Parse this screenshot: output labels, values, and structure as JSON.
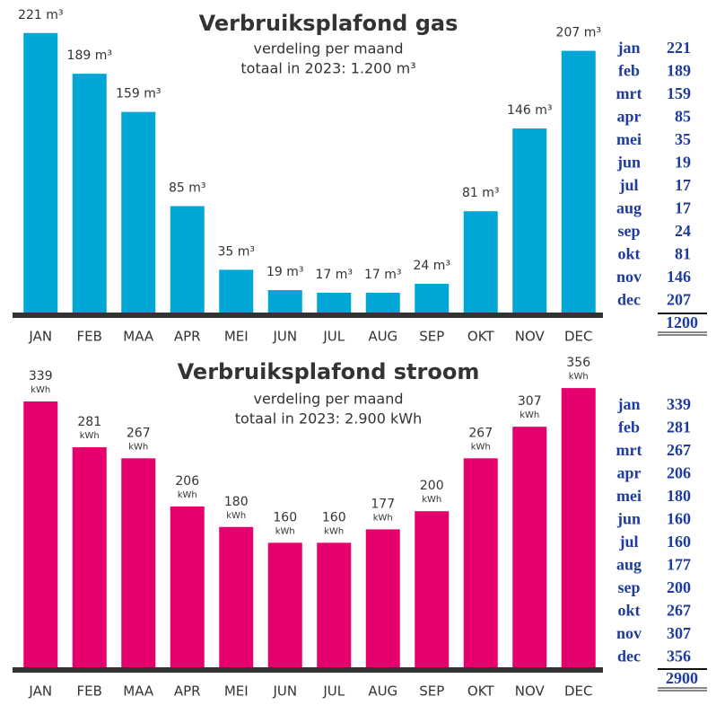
{
  "chart_data": [
    {
      "type": "bar",
      "title": "Verbruiksplafond gas",
      "subtitle": [
        "verdeling per maand",
        "totaal in 2023: 1.200 m³"
      ],
      "categories": [
        "JAN",
        "FEB",
        "MAA",
        "APR",
        "MEI",
        "JUN",
        "JUL",
        "AUG",
        "SEP",
        "OKT",
        "NOV",
        "DEC"
      ],
      "values": [
        221,
        189,
        159,
        85,
        35,
        19,
        17,
        17,
        24,
        81,
        146,
        207
      ],
      "value_labels": [
        "221 m³",
        "189 m³",
        "159 m³",
        "85 m³",
        "35 m³",
        "19 m³",
        "17 m³",
        "17 m³",
        "24 m³",
        "81 m³",
        "146 m³",
        "207 m³"
      ],
      "color": "#00a6d6",
      "ylim": [
        0,
        230
      ],
      "table": {
        "months": [
          "jan",
          "feb",
          "mrt",
          "apr",
          "mei",
          "jun",
          "jul",
          "aug",
          "sep",
          "okt",
          "nov",
          "dec"
        ],
        "values": [
          "221",
          "189",
          "159",
          "85",
          "35",
          "19",
          "17",
          "17",
          "24",
          "81",
          "146",
          "207"
        ],
        "total": "1200"
      }
    },
    {
      "type": "bar",
      "title": "Verbruiksplafond stroom",
      "subtitle": [
        "verdeling per maand",
        "totaal in 2023: 2.900 kWh"
      ],
      "categories": [
        "JAN",
        "FEB",
        "MAA",
        "APR",
        "MEI",
        "JUN",
        "JUL",
        "AUG",
        "SEP",
        "OKT",
        "NOV",
        "DEC"
      ],
      "values": [
        339,
        281,
        267,
        206,
        180,
        160,
        160,
        177,
        200,
        267,
        307,
        356
      ],
      "unit": "kWh",
      "color": "#e5006e",
      "ylim": [
        0,
        380
      ],
      "table": {
        "months": [
          "jan",
          "feb",
          "mrt",
          "apr",
          "mei",
          "jun",
          "jul",
          "aug",
          "sep",
          "okt",
          "nov",
          "dec"
        ],
        "values": [
          "339",
          "281",
          "267",
          "206",
          "180",
          "160",
          "160",
          "177",
          "200",
          "267",
          "307",
          "356"
        ],
        "total": "2900"
      }
    }
  ]
}
